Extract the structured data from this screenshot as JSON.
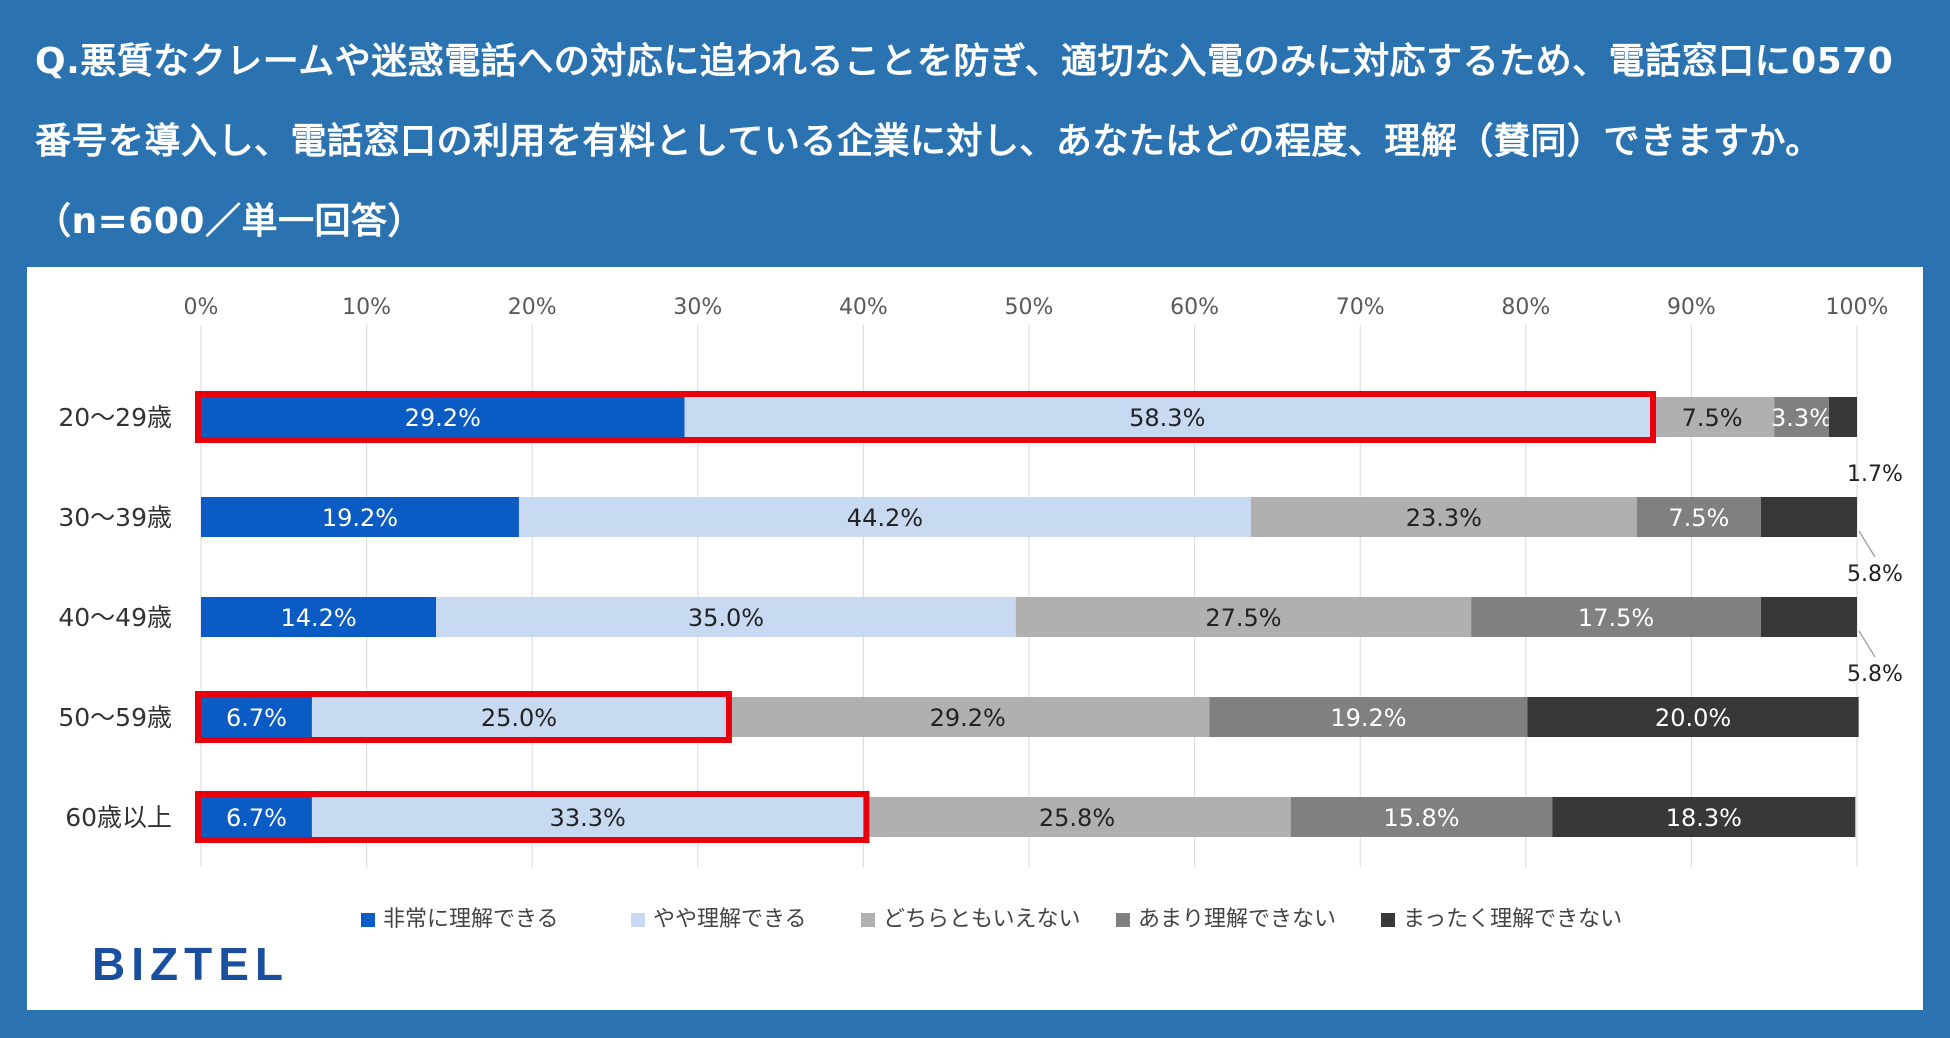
{
  "title": "Q.悪質なクレームや迷惑電話への対応に追われることを防ぎ、適切な入電のみに対応するため、電話窓口に0570番号を導入し、電話窓口の利用を有料としている企業に対し、あなたはどの程度、理解（賛同）できますか。（n=600／単一回答）",
  "brand": "BIZTEL",
  "chart_data": {
    "type": "bar",
    "orientation": "horizontal",
    "stacked": true,
    "percent": true,
    "categories": [
      "20〜29歳",
      "30〜39歳",
      "40〜49歳",
      "50〜59歳",
      "60歳以上"
    ],
    "series": [
      {
        "name": "非常に理解できる",
        "color": "#0b5bc4",
        "label_color": "#ffffff",
        "values": [
          29.2,
          19.2,
          14.2,
          6.7,
          6.7
        ]
      },
      {
        "name": "やや理解できる",
        "color": "#c8daf1",
        "label_color": "#222222",
        "values": [
          58.3,
          44.2,
          35.0,
          25.0,
          33.3
        ]
      },
      {
        "name": "どちらともいえない",
        "color": "#b0b0b0",
        "label_color": "#222222",
        "values": [
          7.5,
          23.3,
          27.5,
          29.2,
          25.8
        ]
      },
      {
        "name": "あまり理解できない",
        "color": "#808080",
        "label_color": "#ffffff",
        "values": [
          3.3,
          7.5,
          17.5,
          19.2,
          15.8
        ]
      },
      {
        "name": "まったく理解できない",
        "color": "#383838",
        "label_color": "#ffffff",
        "values": [
          1.7,
          5.8,
          5.8,
          20.0,
          18.3
        ]
      }
    ],
    "outside_labels": [
      {
        "category_index": 0,
        "series_index": 4,
        "text": "1.7%"
      },
      {
        "category_index": 1,
        "series_index": 4,
        "text": "5.8%"
      },
      {
        "category_index": 2,
        "series_index": 4,
        "text": "5.8%"
      }
    ],
    "x_ticks": [
      "0%",
      "10%",
      "20%",
      "30%",
      "40%",
      "50%",
      "60%",
      "70%",
      "80%",
      "90%",
      "100%"
    ],
    "xlim": [
      0,
      100
    ],
    "highlights": [
      {
        "category_index": 0,
        "from": 0,
        "to": 87.5
      },
      {
        "category_index": 3,
        "from": 0,
        "to": 31.7
      },
      {
        "category_index": 4,
        "from": 0,
        "to": 40.0
      }
    ],
    "highlight_color": "#e8000b",
    "legend_position": "bottom",
    "grid": true
  }
}
